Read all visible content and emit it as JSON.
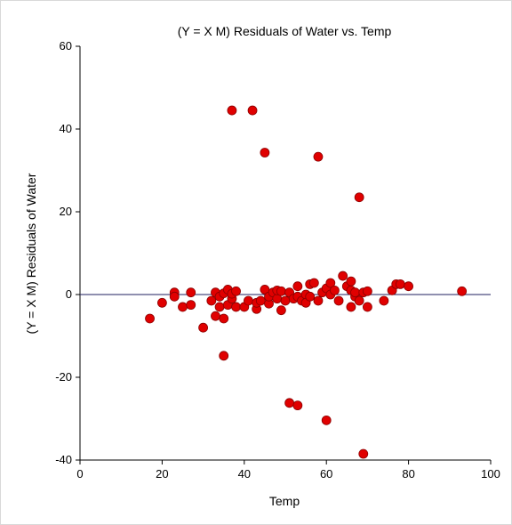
{
  "chart_data": {
    "type": "scatter",
    "title": "(Y = X M) Residuals of Water vs. Temp",
    "xlabel": "Temp",
    "ylabel": "(Y = X M) Residuals of Water",
    "xlim": [
      0,
      100
    ],
    "ylim": [
      -40,
      60
    ],
    "xticks": [
      "0",
      "20",
      "40",
      "60",
      "80",
      "100"
    ],
    "yticks": [
      "-40",
      "-20",
      "0",
      "20",
      "40",
      "60"
    ],
    "reference_line_y": 0,
    "grid": false,
    "marker_color": "#e00000",
    "marker_edge_color": "#8b0000",
    "points": [
      [
        17,
        -5.8
      ],
      [
        20,
        -2.0
      ],
      [
        23,
        0.5
      ],
      [
        23,
        -0.5
      ],
      [
        25,
        -3.0
      ],
      [
        27,
        -2.5
      ],
      [
        27,
        0.5
      ],
      [
        30,
        -8.0
      ],
      [
        32,
        -1.5
      ],
      [
        33,
        -5.2
      ],
      [
        33,
        0.5
      ],
      [
        34,
        -3.0
      ],
      [
        34,
        -0.5
      ],
      [
        35,
        -5.8
      ],
      [
        35,
        0.3
      ],
      [
        35,
        -14.8
      ],
      [
        36,
        -2.5
      ],
      [
        36,
        1.2
      ],
      [
        37,
        -1.0
      ],
      [
        37,
        0.2
      ],
      [
        37,
        44.5
      ],
      [
        38,
        0.8
      ],
      [
        38,
        -3.0
      ],
      [
        40,
        -3.0
      ],
      [
        41,
        -1.5
      ],
      [
        42,
        44.5
      ],
      [
        43,
        -3.5
      ],
      [
        43,
        -2.0
      ],
      [
        44,
        -1.5
      ],
      [
        45,
        1.2
      ],
      [
        45,
        34.3
      ],
      [
        46,
        -2.2
      ],
      [
        46,
        -0.5
      ],
      [
        47,
        0.5
      ],
      [
        48,
        -1.0
      ],
      [
        48,
        1.0
      ],
      [
        49,
        -3.8
      ],
      [
        49,
        0.8
      ],
      [
        50,
        -1.5
      ],
      [
        51,
        -26.2
      ],
      [
        51,
        0.5
      ],
      [
        52,
        -1.0
      ],
      [
        53,
        2.0
      ],
      [
        53,
        -0.5
      ],
      [
        53,
        -26.8
      ],
      [
        54,
        -1.5
      ],
      [
        55,
        0.0
      ],
      [
        55,
        -2.0
      ],
      [
        56,
        2.5
      ],
      [
        56,
        -0.5
      ],
      [
        57,
        2.8
      ],
      [
        58,
        -1.5
      ],
      [
        58,
        33.3
      ],
      [
        59,
        0.5
      ],
      [
        60,
        -30.4
      ],
      [
        60,
        1.5
      ],
      [
        61,
        2.8
      ],
      [
        61,
        0.0
      ],
      [
        62,
        1.0
      ],
      [
        63,
        -1.5
      ],
      [
        64,
        4.5
      ],
      [
        65,
        2.0
      ],
      [
        66,
        1.0
      ],
      [
        66,
        -3.0
      ],
      [
        66,
        3.2
      ],
      [
        67,
        -0.5
      ],
      [
        67,
        0.5
      ],
      [
        68,
        23.5
      ],
      [
        68,
        -1.5
      ],
      [
        69,
        0.5
      ],
      [
        69,
        -38.5
      ],
      [
        70,
        -3.0
      ],
      [
        70,
        0.8
      ],
      [
        74,
        -1.5
      ],
      [
        76,
        1.0
      ],
      [
        77,
        2.5
      ],
      [
        78,
        2.5
      ],
      [
        80,
        2.0
      ],
      [
        93,
        0.8
      ]
    ]
  }
}
